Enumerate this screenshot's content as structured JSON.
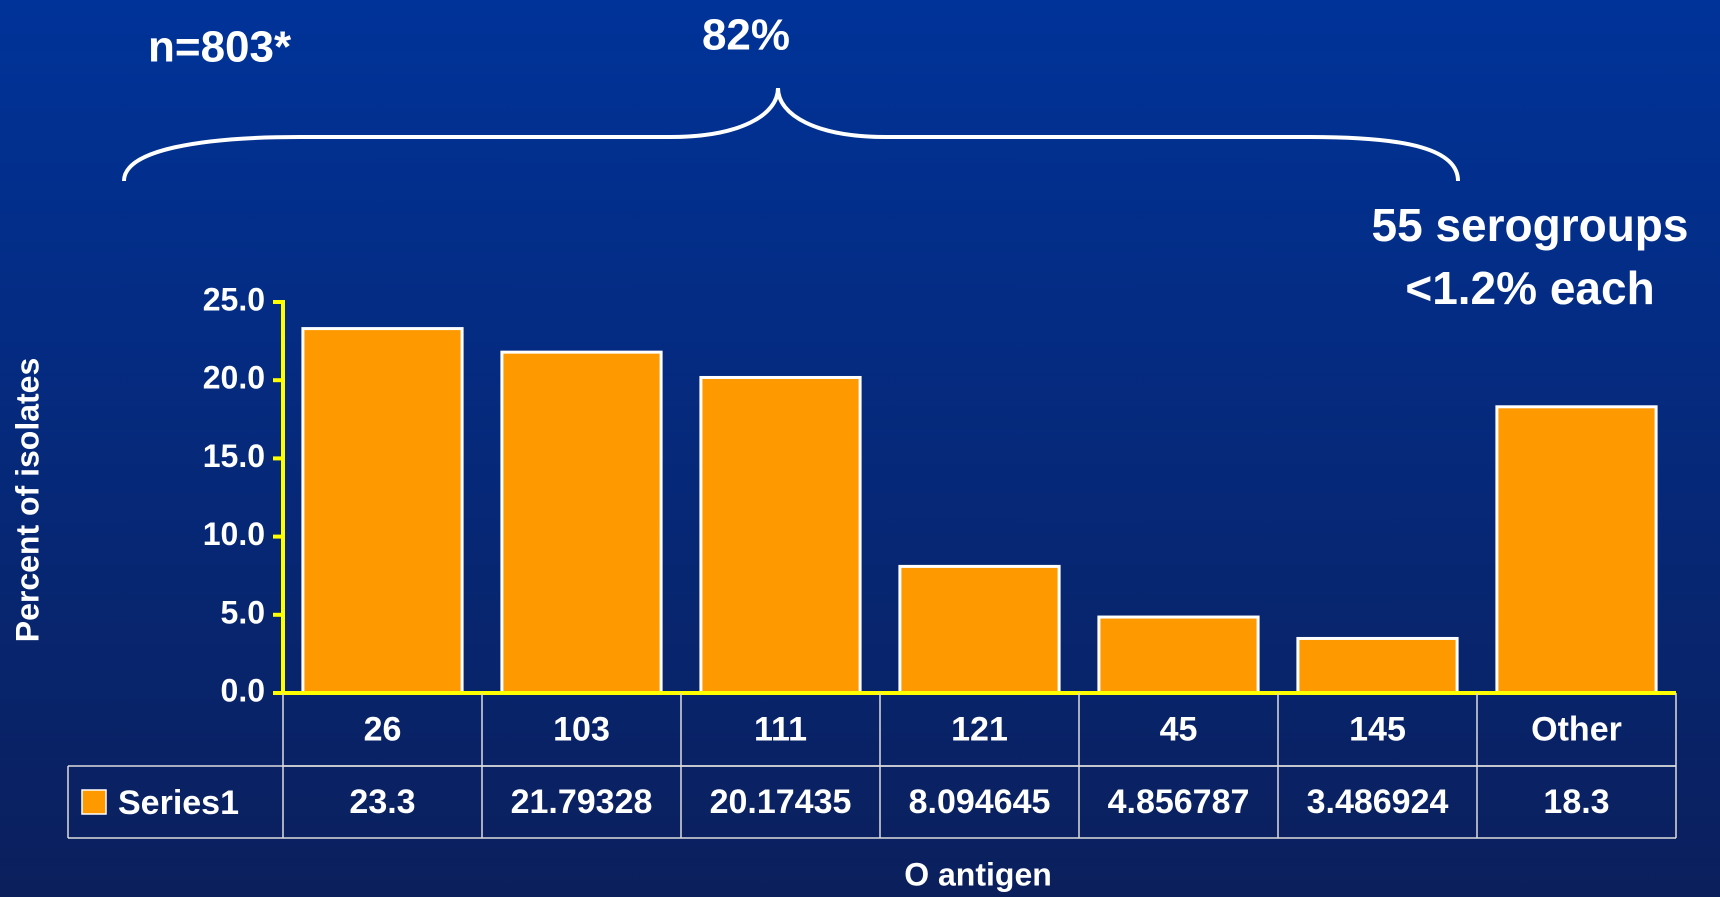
{
  "chart_data": {
    "type": "bar",
    "annotations": [
      "n=803*",
      "82%",
      "55 serogroups",
      "<1.2% each"
    ],
    "y_label": "Percent of isolates",
    "x_label": "O antigen",
    "categories": [
      "26",
      "103",
      "111",
      "121",
      "45",
      "145",
      "Other"
    ],
    "series": [
      {
        "name": "Series1",
        "color": "#ff9900",
        "values": [
          23.3,
          21.79328,
          20.17435,
          8.094645,
          4.856787,
          3.486924,
          18.3
        ]
      }
    ],
    "ylim": [
      0,
      25
    ],
    "yticks": [
      {
        "value": 0,
        "label": "0.0"
      },
      {
        "value": 5,
        "label": "5.0"
      },
      {
        "value": 10,
        "label": "10.0"
      },
      {
        "value": 15,
        "label": "15.0"
      },
      {
        "value": 20,
        "label": "20.0"
      },
      {
        "value": 25,
        "label": "25.0"
      }
    ],
    "grid": false,
    "data_table": true
  }
}
